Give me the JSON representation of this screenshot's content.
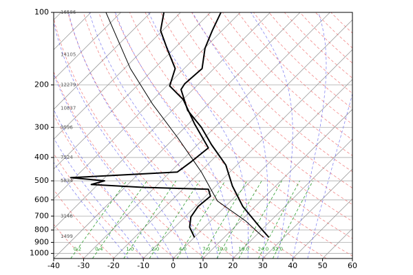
{
  "chart_data": {
    "type": "skewt",
    "xlim": [
      -40,
      60
    ],
    "xticks": [
      -40,
      -30,
      -20,
      -10,
      0,
      10,
      20,
      30,
      40,
      50,
      60
    ],
    "ylim": [
      1050,
      100
    ],
    "yticks": [
      100,
      200,
      300,
      400,
      500,
      600,
      700,
      800,
      900,
      1000
    ],
    "log_y": true,
    "grid": true,
    "series": [
      {
        "color": "#000000",
        "width": 2,
        "pressure": [
          859,
          778,
          639,
          525,
          430,
          354,
          300,
          255,
          209,
          198,
          171,
          141,
          119,
          100
        ],
        "values": [
          25,
          18.5,
          5.9,
          -4.5,
          -13.7,
          -25.3,
          -34.5,
          -44.8,
          -54,
          -54.7,
          -54,
          -59.8,
          -63.3,
          -66.5
        ]
      },
      {
        "color": "#000000",
        "width": 2,
        "pressure": [
          859,
          778,
          706,
          639,
          579,
          542,
          532,
          518,
          500,
          485,
          460,
          417,
          365,
          290,
          230,
          202,
          171,
          141,
          119,
          100
        ],
        "values": [
          0.1,
          -5,
          -8,
          -9.1,
          -8.4,
          -11.4,
          -34,
          -52.2,
          -49,
          -61.4,
          -27.6,
          -26.4,
          -25.3,
          -38,
          -49.9,
          -59,
          -63,
          -72.5,
          -80.6,
          -85.6
        ]
      },
      {
        "color": "#000000",
        "width": 1,
        "pressure": [
          859,
          733,
          606,
          460,
          331,
          240,
          171,
          100
        ],
        "values": [
          23.2,
          11.6,
          -4.5,
          -19.5,
          -39,
          -58.7,
          -78,
          -105
        ]
      }
    ],
    "height_labels": {
      "pressure": [
        100,
        150,
        200,
        250,
        300,
        400,
        500,
        700,
        850
      ],
      "values": [
        16586,
        14105,
        12279,
        10837,
        9596,
        7524,
        5834,
        3146,
        1499
      ]
    },
    "mixing_ratios": [
      0.2,
      0.4,
      {
        "value": 1,
        "label": "1.0"
      },
      {
        "value": 2,
        "label": "2.0"
      },
      {
        "value": 4,
        "label": "4.0"
      },
      {
        "value": 7,
        "label": "7.0"
      },
      {
        "value": 10,
        "label": "10.0"
      },
      {
        "value": 16,
        "label": "16.0"
      },
      {
        "value": 24,
        "label": "24.0"
      },
      {
        "value": 32,
        "label": "32.0"
      }
    ]
  }
}
